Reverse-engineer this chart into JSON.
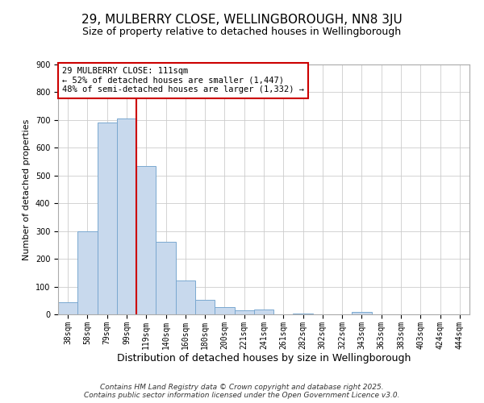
{
  "title": "29, MULBERRY CLOSE, WELLINGBOROUGH, NN8 3JU",
  "subtitle": "Size of property relative to detached houses in Wellingborough",
  "xlabel": "Distribution of detached houses by size in Wellingborough",
  "ylabel": "Number of detached properties",
  "categories": [
    "38sqm",
    "58sqm",
    "79sqm",
    "99sqm",
    "119sqm",
    "140sqm",
    "160sqm",
    "180sqm",
    "200sqm",
    "221sqm",
    "241sqm",
    "261sqm",
    "282sqm",
    "302sqm",
    "322sqm",
    "343sqm",
    "363sqm",
    "383sqm",
    "403sqm",
    "424sqm",
    "444sqm"
  ],
  "values": [
    45,
    300,
    690,
    705,
    535,
    262,
    122,
    53,
    27,
    14,
    18,
    1,
    2,
    1,
    0,
    8,
    1,
    0,
    0,
    0,
    1
  ],
  "bar_color": "#c8d9ed",
  "bar_edge_color": "#7aa8d0",
  "vline_x_index": 4,
  "vline_color": "#cc0000",
  "annotation_line1": "29 MULBERRY CLOSE: 111sqm",
  "annotation_line2": "← 52% of detached houses are smaller (1,447)",
  "annotation_line3": "48% of semi-detached houses are larger (1,332) →",
  "annotation_box_edge_color": "#cc0000",
  "ylim": [
    0,
    900
  ],
  "yticks": [
    0,
    100,
    200,
    300,
    400,
    500,
    600,
    700,
    800,
    900
  ],
  "background_color": "#ffffff",
  "grid_color": "#cccccc",
  "footnote_line1": "Contains HM Land Registry data © Crown copyright and database right 2025.",
  "footnote_line2": "Contains public sector information licensed under the Open Government Licence v3.0.",
  "title_fontsize": 11,
  "subtitle_fontsize": 9,
  "xlabel_fontsize": 9,
  "ylabel_fontsize": 8,
  "tick_fontsize": 7,
  "annotation_fontsize": 7.5,
  "footnote_fontsize": 6.5
}
